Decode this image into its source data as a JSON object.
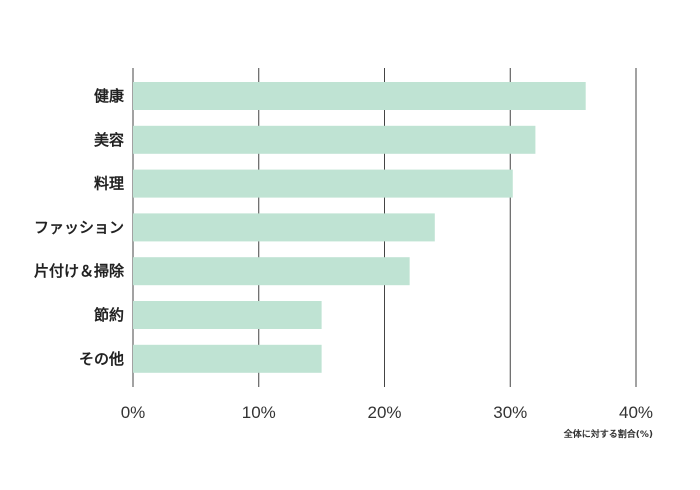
{
  "chart_data": {
    "type": "bar",
    "orientation": "horizontal",
    "categories": [
      "健康",
      "美容",
      "料理",
      "ファッション",
      "片付け＆掃除",
      "節約",
      "その他"
    ],
    "values": [
      36,
      32,
      30.2,
      24,
      22,
      15,
      15
    ],
    "xlabel": "全体に対する割合(%)",
    "xlim": [
      0,
      40
    ],
    "xticks": [
      0,
      10,
      20,
      30,
      40
    ],
    "xtick_labels": [
      "0%",
      "10%",
      "20%",
      "30%",
      "40%"
    ],
    "grid": "vertical",
    "colors": {
      "bar": "#bfe3d3"
    }
  }
}
